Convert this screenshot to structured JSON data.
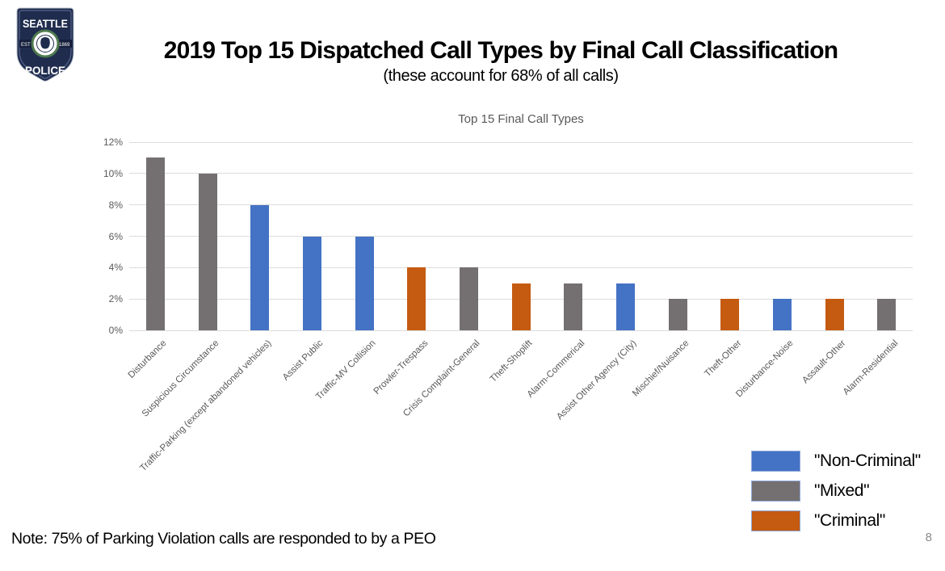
{
  "badge": {
    "top_text": "SEATTLE",
    "bottom_text": "POLICE",
    "est_text": "EST",
    "year_text": "1869",
    "navy": "#1F2C4E",
    "green": "#4F7A4F"
  },
  "header": {
    "title": "2019 Top 15 Dispatched Call Types by Final Call Classification",
    "subtitle": "(these account for 68% of all calls)"
  },
  "chart_data": {
    "type": "bar",
    "title": "Top 15 Final Call Types",
    "categories": [
      "Disturbance",
      "Suspicious Circumstance",
      "Traffic-Parking (except abandoned vehicles)",
      "Assist Public",
      "Traffic-MV Collision",
      "Prowler-Trespass",
      "Crisis Complaint-General",
      "Theft-Shoplift",
      "Alarm-Commerical",
      "Assist Other Agency (City)",
      "Mischief/Nuisance",
      "Theft-Other",
      "Disturbance-Noise",
      "Assault-Other",
      "Alarm-Residential"
    ],
    "values": [
      11,
      10,
      8,
      6,
      6,
      4,
      4,
      3,
      3,
      3,
      2,
      2,
      2,
      2,
      2
    ],
    "classifications": [
      "mixed",
      "mixed",
      "non-criminal",
      "non-criminal",
      "non-criminal",
      "criminal",
      "mixed",
      "criminal",
      "mixed",
      "non-criminal",
      "mixed",
      "criminal",
      "non-criminal",
      "criminal",
      "mixed"
    ],
    "unit": "%",
    "ylim": [
      0,
      12
    ],
    "yticks": [
      "0%",
      "2%",
      "4%",
      "6%",
      "8%",
      "10%",
      "12%"
    ],
    "grid": true,
    "legend_position": "bottom-right",
    "colors": {
      "non-criminal": "#4472C4",
      "mixed": "#747071",
      "criminal": "#C55A11"
    }
  },
  "legend": {
    "items": [
      {
        "key": "non-criminal",
        "label": "\"Non-Criminal\"",
        "color": "#4472C4"
      },
      {
        "key": "mixed",
        "label": "\"Mixed\"",
        "color": "#747071"
      },
      {
        "key": "criminal",
        "label": "\"Criminal\"",
        "color": "#C55A11"
      }
    ]
  },
  "footer": {
    "note": "Note: 75% of Parking Violation calls are responded to by a PEO",
    "page_number": "8"
  }
}
